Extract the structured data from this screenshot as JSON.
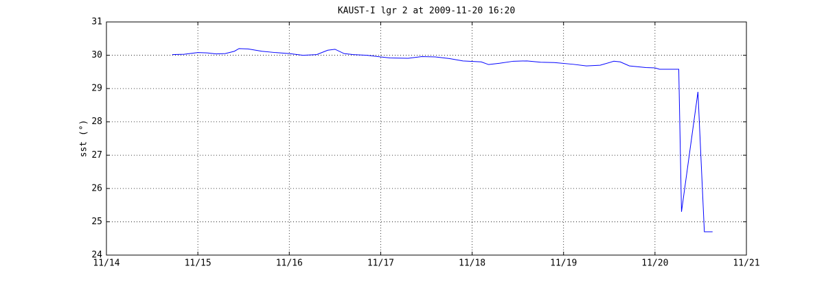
{
  "chart_data": {
    "type": "line",
    "title": "KAUST-I lgr 2 at 2009-11-20 16:20",
    "y_label": "sst (°)",
    "x": [
      14.72,
      14.85,
      15.0,
      15.1,
      15.2,
      15.3,
      15.4,
      15.45,
      15.55,
      15.7,
      15.85,
      16.0,
      16.15,
      16.3,
      16.42,
      16.5,
      16.6,
      16.7,
      16.85,
      17.0,
      17.1,
      17.3,
      17.45,
      17.6,
      17.75,
      17.9,
      18.1,
      18.18,
      18.3,
      18.45,
      18.6,
      18.75,
      18.9,
      19.1,
      19.25,
      19.4,
      19.55,
      19.62,
      19.72,
      19.9,
      20.0,
      20.05,
      20.26,
      20.29,
      20.4,
      20.47,
      20.54,
      20.63
    ],
    "series": [
      {
        "color": "#0000ff",
        "values": [
          30.02,
          30.03,
          30.08,
          30.07,
          30.04,
          30.05,
          30.12,
          30.2,
          30.19,
          30.12,
          30.08,
          30.05,
          30.0,
          30.02,
          30.15,
          30.18,
          30.05,
          30.02,
          30.0,
          29.95,
          29.92,
          29.91,
          29.96,
          29.95,
          29.9,
          29.83,
          29.8,
          29.72,
          29.76,
          29.82,
          29.83,
          29.79,
          29.78,
          29.73,
          29.68,
          29.7,
          29.82,
          29.8,
          29.68,
          29.63,
          29.62,
          29.58,
          29.58,
          25.3,
          27.5,
          28.9,
          24.7,
          24.7
        ]
      }
    ],
    "xlim": [
      14,
      21
    ],
    "xticks": [
      {
        "value": 14,
        "label": "11/14"
      },
      {
        "value": 15,
        "label": "11/15"
      },
      {
        "value": 16,
        "label": "11/16"
      },
      {
        "value": 17,
        "label": "11/17"
      },
      {
        "value": 18,
        "label": "11/18"
      },
      {
        "value": 19,
        "label": "11/19"
      },
      {
        "value": 20,
        "label": "11/20"
      },
      {
        "value": 21,
        "label": "11/21"
      }
    ],
    "ylim": [
      24,
      31
    ],
    "yticks": [
      24,
      25,
      26,
      27,
      28,
      29,
      30,
      31
    ],
    "grid": true
  }
}
